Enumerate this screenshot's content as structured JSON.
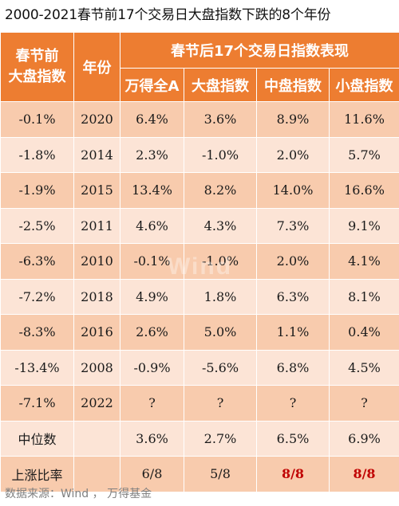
{
  "title": "2000-2021春节前17个交易日大盘指数下跌的8个年份",
  "header": {
    "col1": "春节前大盘指数",
    "col2": "年份",
    "group": "春节后17个交易日指数表现",
    "sub": [
      "万得全A",
      "大盘指数",
      "中盘指数",
      "小盘指数"
    ]
  },
  "rows": [
    {
      "pre": "-0.1%",
      "year": "2020",
      "v": [
        "6.4%",
        "3.6%",
        "8.9%",
        "11.6%"
      ]
    },
    {
      "pre": "-1.8%",
      "year": "2014",
      "v": [
        "2.3%",
        "-1.0%",
        "2.0%",
        "5.7%"
      ]
    },
    {
      "pre": "-1.9%",
      "year": "2015",
      "v": [
        "13.4%",
        "8.2%",
        "14.0%",
        "16.6%"
      ]
    },
    {
      "pre": "-2.5%",
      "year": "2011",
      "v": [
        "4.6%",
        "4.3%",
        "7.3%",
        "9.1%"
      ]
    },
    {
      "pre": "-6.3%",
      "year": "2010",
      "v": [
        "-0.1%",
        "-1.0%",
        "2.0%",
        "4.1%"
      ]
    },
    {
      "pre": "-7.2%",
      "year": "2018",
      "v": [
        "4.9%",
        "1.8%",
        "6.3%",
        "8.1%"
      ]
    },
    {
      "pre": "-8.3%",
      "year": "2016",
      "v": [
        "2.6%",
        "5.0%",
        "1.1%",
        "0.4%"
      ]
    },
    {
      "pre": "-13.4%",
      "year": "2008",
      "v": [
        "-0.9%",
        "-5.6%",
        "6.8%",
        "4.5%"
      ]
    },
    {
      "pre": "-7.1%",
      "year": "2022",
      "v": [
        "?",
        "?",
        "?",
        "?"
      ]
    },
    {
      "pre": "中位数",
      "year": "",
      "v": [
        "3.6%",
        "2.7%",
        "6.5%",
        "6.9%"
      ]
    },
    {
      "pre": "上涨比率",
      "year": "",
      "v": [
        "6/8",
        "5/8",
        "8/8",
        "8/8"
      ]
    }
  ],
  "highlight_color": "#c00000",
  "watermark": "Wind",
  "source": "数据来源：Wind ， 万得基金"
}
